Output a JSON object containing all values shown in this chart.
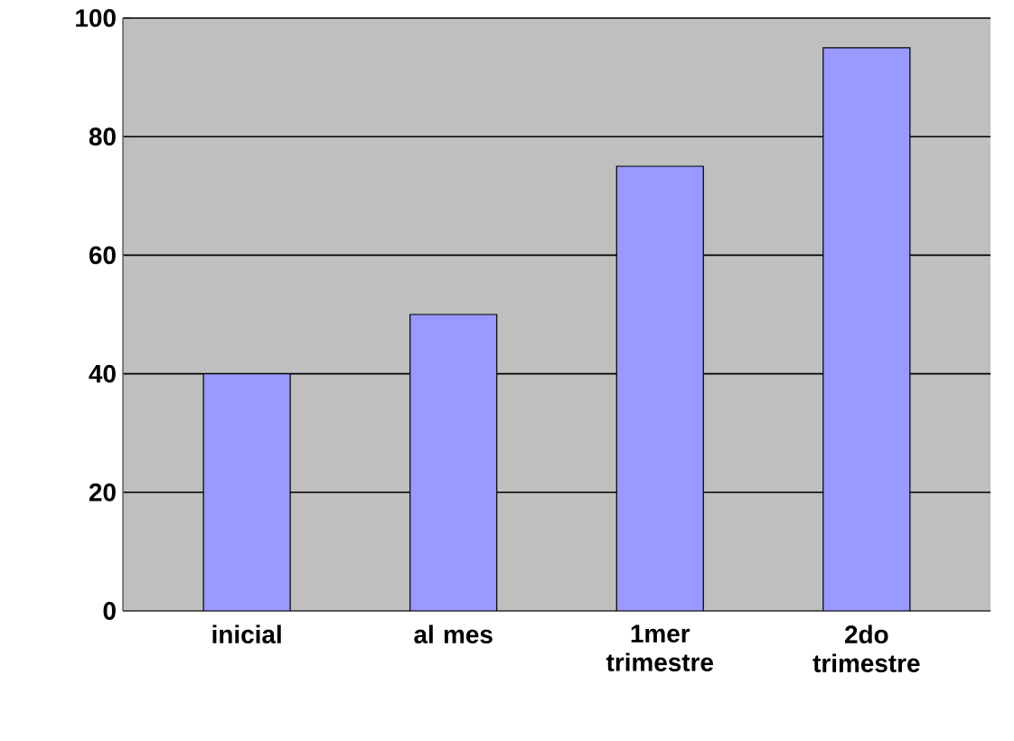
{
  "chart_data": {
    "type": "bar",
    "categories": [
      "inicial",
      "al mes",
      "1mer trimestre",
      "2do trimestre"
    ],
    "values": [
      40,
      50,
      75,
      95
    ],
    "color": "#9999ff",
    "ylim": [
      0,
      100
    ],
    "yticks": [
      0,
      20,
      40,
      60,
      80,
      100
    ],
    "grid": "y"
  }
}
